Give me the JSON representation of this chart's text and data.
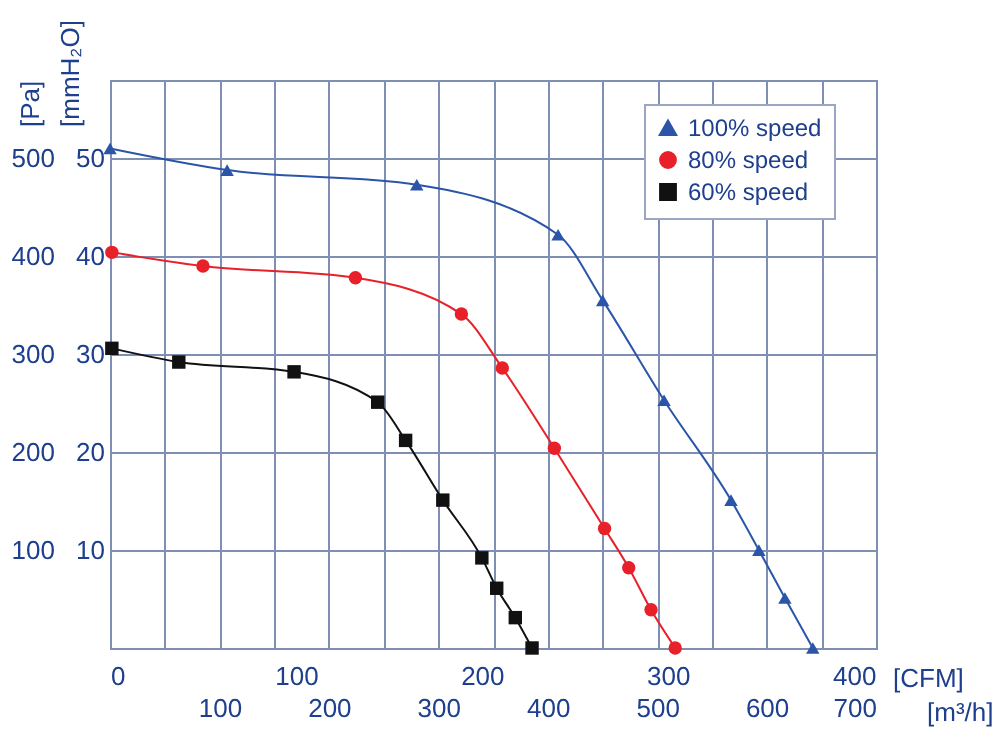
{
  "chart_data": {
    "type": "line",
    "ylabel": "[Pa]",
    "y2label": "[mmH₂O]",
    "xlabel": "[CFM]",
    "x2label": "[m³/h]",
    "xlim": [
      0,
      412
    ],
    "xticks": [
      0,
      100,
      200,
      300,
      400
    ],
    "x2lim": [
      0,
      700
    ],
    "x2ticks": [
      {
        "value": 50,
        "label": null
      },
      100,
      {
        "value": 150,
        "label": null
      },
      200,
      {
        "value": 250,
        "label": null
      },
      300,
      {
        "value": 350,
        "label": null
      },
      400,
      {
        "value": 450,
        "label": null
      },
      500,
      {
        "value": 550,
        "label": null
      },
      600,
      {
        "value": 650,
        "label": null
      },
      700
    ],
    "ylim": [
      0,
      580
    ],
    "yticks": [
      100,
      200,
      300,
      400,
      500
    ],
    "y2lim": [
      0,
      58
    ],
    "y2ticks": [
      10,
      20,
      30,
      40,
      50
    ],
    "grid": true,
    "legend": "top right",
    "line_style": "solid",
    "series": [
      {
        "name": "100% speed",
        "color": "#2b55a8",
        "marker": "triangle",
        "x": [
          0,
          63,
          165,
          241,
          265,
          298,
          334,
          349,
          363,
          378
        ],
        "values": [
          510,
          488,
          473,
          422,
          355,
          253,
          151,
          100,
          51,
          0
        ]
      },
      {
        "name": "80% speed",
        "color": "#e8202a",
        "marker": "circle",
        "x": [
          1,
          50,
          132,
          189,
          211,
          239,
          266,
          279,
          291,
          304
        ],
        "values": [
          404,
          390,
          378,
          341,
          286,
          204,
          122,
          82,
          39,
          0
        ]
      },
      {
        "name": "60% speed",
        "color": "#111111",
        "marker": "square",
        "x": [
          1,
          37,
          99,
          144,
          159,
          179,
          200,
          208,
          218,
          227
        ],
        "values": [
          306,
          292,
          282,
          251,
          212,
          151,
          92,
          61,
          31,
          0
        ]
      }
    ]
  }
}
